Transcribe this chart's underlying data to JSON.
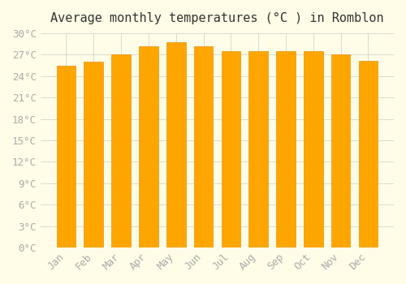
{
  "title": "Average monthly temperatures (°C ) in Romblon",
  "months": [
    "Jan",
    "Feb",
    "Mar",
    "Apr",
    "May",
    "Jun",
    "Jul",
    "Aug",
    "Sep",
    "Oct",
    "Nov",
    "Dec"
  ],
  "temperatures": [
    25.5,
    26.0,
    27.0,
    28.2,
    28.7,
    28.2,
    27.5,
    27.5,
    27.5,
    27.5,
    27.0,
    26.1
  ],
  "bar_color": "#FFA500",
  "bar_edge_color": "#E8940A",
  "background_color": "#FFFDE7",
  "grid_color": "#CCCCCC",
  "text_color": "#AAAAAA",
  "ylim": [
    0,
    30
  ],
  "ytick_interval": 3,
  "title_fontsize": 11,
  "tick_fontsize": 9,
  "bar_width": 0.7
}
